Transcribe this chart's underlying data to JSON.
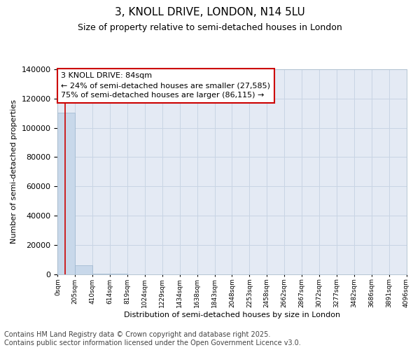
{
  "title": "3, KNOLL DRIVE, LONDON, N14 5LU",
  "subtitle": "Size of property relative to semi-detached houses in London",
  "xlabel": "Distribution of semi-detached houses by size in London",
  "ylabel": "Number of semi-detached properties",
  "annotation_line1": "3 KNOLL DRIVE: 84sqm",
  "annotation_line2": "← 24% of semi-detached houses are smaller (27,585)",
  "annotation_line3": "75% of semi-detached houses are larger (86,115) →",
  "bar_edges": [
    0,
    205,
    410,
    614,
    819,
    1024,
    1229,
    1434,
    1638,
    1843,
    2048,
    2253,
    2458,
    2662,
    2867,
    3072,
    3277,
    3482,
    3686,
    3891,
    4096
  ],
  "bar_heights": [
    110500,
    6000,
    400,
    150,
    80,
    50,
    35,
    25,
    18,
    14,
    11,
    9,
    7,
    6,
    5,
    4,
    3,
    3,
    2,
    2
  ],
  "bar_color": "#c8d8ea",
  "bar_edgecolor": "#9ab4cc",
  "vline_color": "#cc0000",
  "vline_x": 84,
  "grid_color": "#c8d4e4",
  "background_color": "#e4eaf4",
  "footnote": "Contains HM Land Registry data © Crown copyright and database right 2025.\nContains public sector information licensed under the Open Government Licence v3.0.",
  "ylim": [
    0,
    140000
  ],
  "yticks": [
    0,
    20000,
    40000,
    60000,
    80000,
    100000,
    120000,
    140000
  ],
  "title_fontsize": 11,
  "subtitle_fontsize": 9,
  "annotation_fontsize": 8,
  "footnote_fontsize": 7,
  "ylabel_fontsize": 8,
  "xlabel_fontsize": 8
}
